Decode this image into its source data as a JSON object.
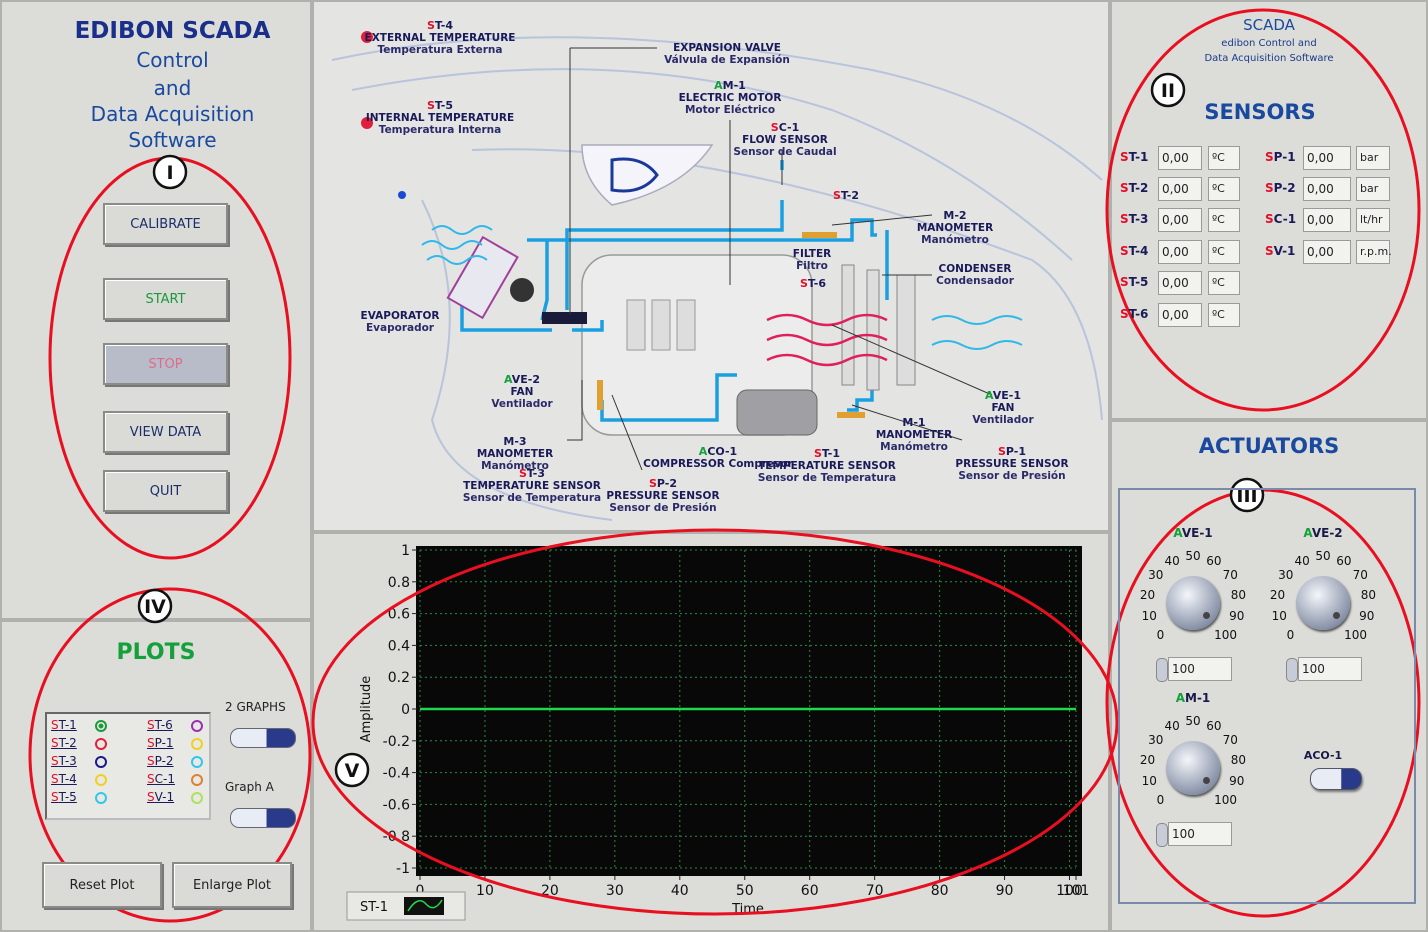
{
  "left": {
    "title": [
      "EDIBON SCADA",
      "Control",
      "and",
      "Data Acquisition",
      "Software"
    ],
    "buttons": [
      "CALIBRATE",
      "START",
      "STOP",
      "VIEW DATA",
      "QUIT"
    ],
    "plots": {
      "title": "PLOTS",
      "legend": [
        {
          "name": "ST-1",
          "color": "#1a9a3a"
        },
        {
          "name": "ST-2",
          "color": "#e0203a"
        },
        {
          "name": "ST-3",
          "color": "#1a1a8a"
        },
        {
          "name": "ST-4",
          "color": "#f0d020"
        },
        {
          "name": "ST-5",
          "color": "#30c8e8"
        },
        {
          "name": "ST-6",
          "color": "#9a30b0"
        },
        {
          "name": "SP-1",
          "color": "#f0d020"
        },
        {
          "name": "SP-2",
          "color": "#30c8e8"
        },
        {
          "name": "SC-1",
          "color": "#e08030"
        },
        {
          "name": "SV-1",
          "color": "#b0e060"
        }
      ],
      "toggles": [
        "2 GRAPHS",
        "Graph A"
      ],
      "buttons": [
        "Reset Plot",
        "Enlarge Plot"
      ]
    }
  },
  "diagram": {
    "labels": [
      [
        "ST-4",
        "EXTERNAL TEMPERATURE",
        "Temperatura Externa"
      ],
      [
        "ST-5",
        "INTERNAL TEMPERATURE",
        "Temperatura Interna"
      ],
      [
        "EXPANSION VALVE",
        "Válvula de Expansión"
      ],
      [
        "AM-1",
        "ELECTRIC MOTOR",
        "Motor Eléctrico"
      ],
      [
        "SC-1",
        "FLOW SENSOR",
        "Sensor de Caudal"
      ],
      [
        "ST-2"
      ],
      [
        "M-2",
        "MANOMETER",
        "Manómetro"
      ],
      [
        "FILTER",
        "Filtro"
      ],
      [
        "CONDENSER",
        "Condensador"
      ],
      [
        "ST-6"
      ],
      [
        "EVAPORATOR",
        "Evaporador"
      ],
      [
        "AVE-2",
        "FAN",
        "Ventilador"
      ],
      [
        "AVE-1",
        "FAN",
        "Ventilador"
      ],
      [
        "M-3",
        "MANOMETER",
        "Manómetro"
      ],
      [
        "ST-3",
        "TEMPERATURE SENSOR",
        "Sensor de Temperatura"
      ],
      [
        "SP-2",
        "PRESSURE SENSOR",
        "Sensor de Presión"
      ],
      [
        "ACO-1",
        "COMPRESSOR  Compresor"
      ],
      [
        "M-1",
        "MANOMETER",
        "Manómetro"
      ],
      [
        "ST-1",
        "TEMPERATURE SENSOR",
        "Sensor de Temperatura"
      ],
      [
        "SP-1",
        "PRESSURE SENSOR",
        "Sensor de Presión"
      ]
    ]
  },
  "plot": {
    "type": "line",
    "y_label": "Amplitude",
    "x_label": "Time",
    "xlim": [
      0,
      101
    ],
    "ylim": [
      -1,
      1
    ],
    "xticks": [
      0,
      10,
      20,
      30,
      40,
      50,
      60,
      70,
      80,
      90,
      100,
      101
    ],
    "yticks": [
      1,
      0.8,
      0.6,
      0.4,
      0.2,
      0,
      -0.2,
      -0.4,
      -0.6,
      -0.8,
      -1
    ],
    "grid": true,
    "series": [
      {
        "name": "ST-1",
        "color": "#22d84a",
        "x": [
          0,
          101
        ],
        "values": [
          0,
          0
        ]
      }
    ]
  },
  "right": {
    "title": "SCADA",
    "subtitle": [
      "edibon Control and",
      "Data Acquisition Software"
    ],
    "sensors_title": "SENSORS",
    "sensors": [
      [
        {
          "name": "ST-1",
          "value": "0,00",
          "unit": "ºC"
        },
        {
          "name": "ST-2",
          "value": "0,00",
          "unit": "ºC"
        },
        {
          "name": "ST-3",
          "value": "0,00",
          "unit": "ºC"
        },
        {
          "name": "ST-4",
          "value": "0,00",
          "unit": "ºC"
        },
        {
          "name": "ST-5",
          "value": "0,00",
          "unit": "ºC"
        },
        {
          "name": "ST-6",
          "value": "0,00",
          "unit": "ºC"
        }
      ],
      [
        {
          "name": "SP-1",
          "value": "0,00",
          "unit": "bar"
        },
        {
          "name": "SP-2",
          "value": "0,00",
          "unit": "bar"
        },
        {
          "name": "SC-1",
          "value": "0,00",
          "unit": "lt/hr"
        },
        {
          "name": "SV-1",
          "value": "0,00",
          "unit": "r.p.m."
        }
      ]
    ],
    "actuators_title": "ACTUATORS",
    "dial_labels": [
      0,
      10,
      20,
      30,
      40,
      50,
      60,
      70,
      80,
      90,
      100
    ],
    "knobs": [
      {
        "name": "AVE-1",
        "value": 100
      },
      {
        "name": "AVE-2",
        "value": 100
      },
      {
        "name": "AM-1",
        "value": 100
      }
    ],
    "switch": "ACO-1"
  },
  "annotations": [
    "I",
    "II",
    "III",
    "IV",
    "V"
  ]
}
